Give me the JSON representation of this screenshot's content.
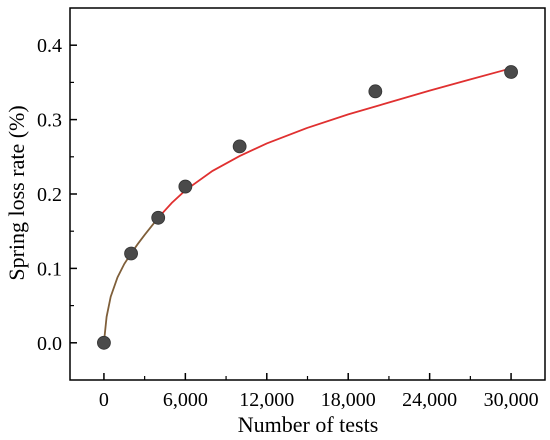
{
  "chart_data": {
    "type": "scatter",
    "title": "",
    "xlabel": "Number of tests",
    "ylabel": "Spring loss rate (%)",
    "xlim": [
      -2500,
      32500
    ],
    "ylim": [
      -0.05,
      0.45
    ],
    "x_ticks": [
      0,
      6000,
      12000,
      18000,
      24000,
      30000
    ],
    "x_tick_labels": [
      "0",
      "6,000",
      "12,000",
      "18,000",
      "24,000",
      "30,000"
    ],
    "y_ticks": [
      0.0,
      0.1,
      0.2,
      0.3,
      0.4
    ],
    "y_tick_labels": [
      "0.0",
      "0.1",
      "0.2",
      "0.3",
      "0.4"
    ],
    "grid": false,
    "legend": "none",
    "series": [
      {
        "marker": "circle",
        "color": "#4a4a4a",
        "x": [
          0,
          2000,
          4000,
          6000,
          10000,
          20000,
          30000
        ],
        "y": [
          0.0,
          0.12,
          0.168,
          0.21,
          0.264,
          0.338,
          0.364
        ]
      }
    ],
    "fit_curve": {
      "color_low": "#7f5f3a",
      "color_high": "#e03030",
      "split_x": 4000,
      "x": [
        0,
        200,
        500,
        1000,
        1500,
        2000,
        2500,
        3000,
        4000,
        5000,
        6000,
        8000,
        10000,
        12000,
        15000,
        18000,
        21000,
        24000,
        27000,
        30000
      ],
      "y": [
        0.0,
        0.035,
        0.062,
        0.088,
        0.106,
        0.12,
        0.133,
        0.145,
        0.168,
        0.188,
        0.205,
        0.231,
        0.251,
        0.268,
        0.289,
        0.307,
        0.323,
        0.339,
        0.354,
        0.369
      ]
    }
  }
}
